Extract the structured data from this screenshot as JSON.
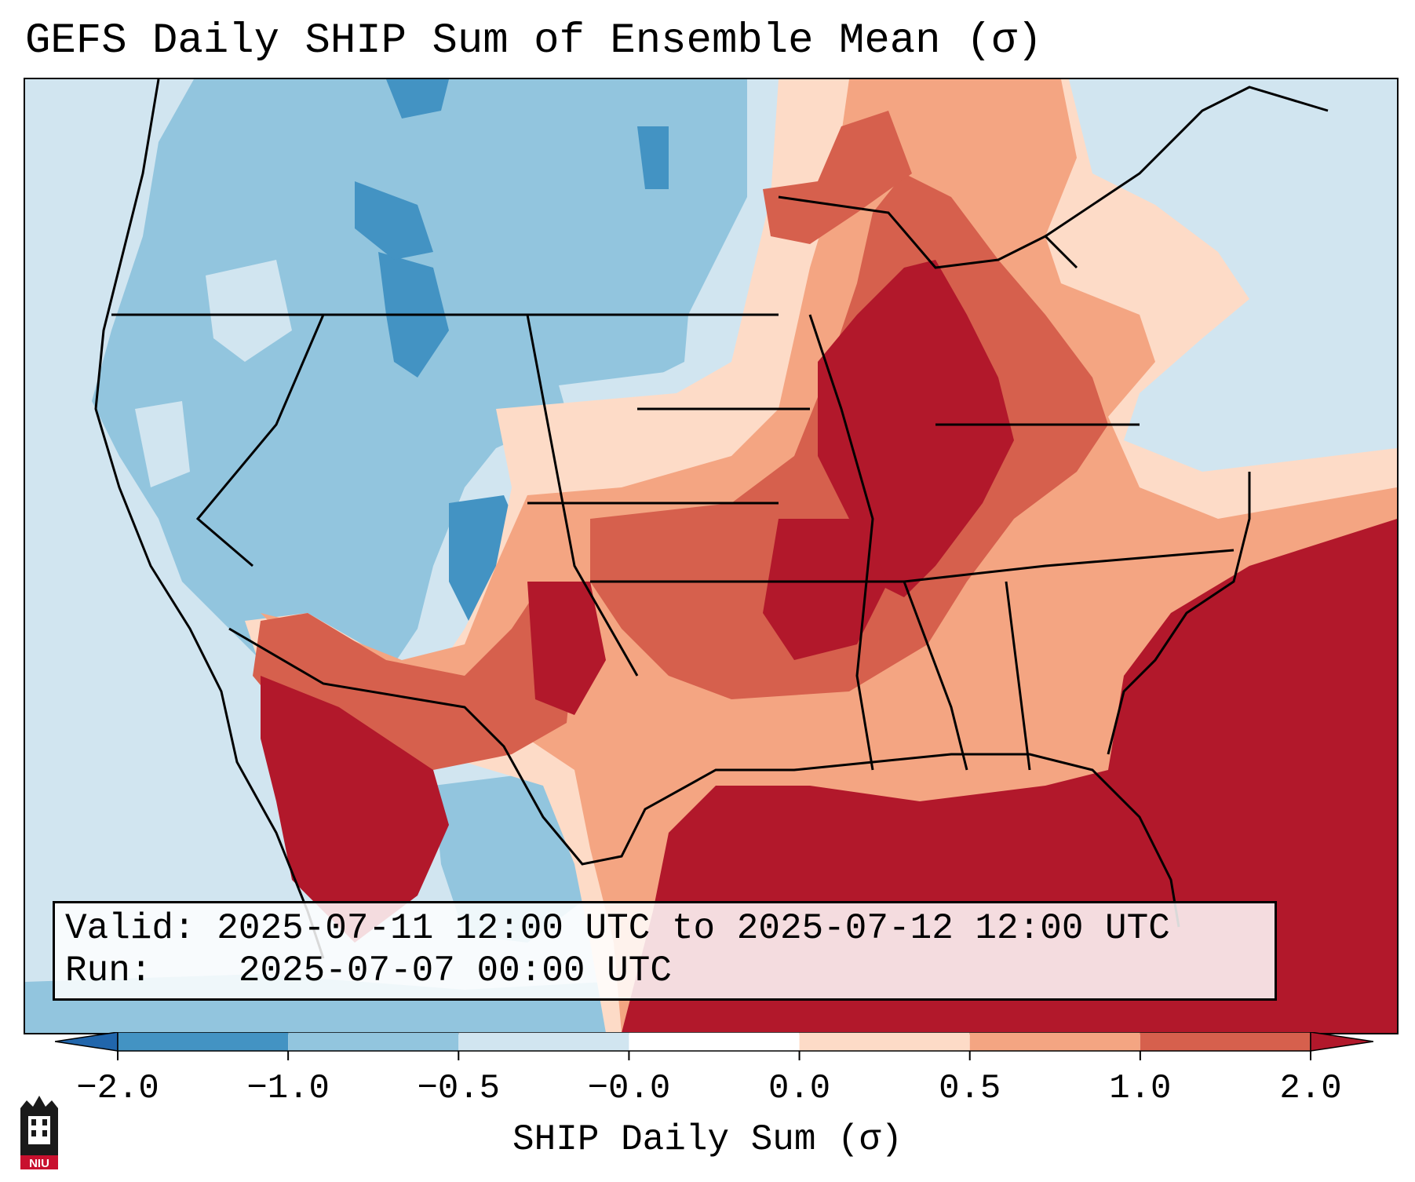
{
  "title": "GEFS Daily SHIP Sum of Ensemble Mean (σ)",
  "info": {
    "valid_label": "Valid:",
    "valid_value": "2025-07-11 12:00 UTC to 2025-07-12 12:00 UTC",
    "run_label": "Run:",
    "run_value": "2025-07-07 00:00 UTC"
  },
  "colorbar": {
    "label": "SHIP Daily Sum (σ)",
    "ticks": [
      "−2.0",
      "−1.0",
      "−0.5",
      "−0.0",
      "0.0",
      "0.5",
      "1.0",
      "2.0"
    ],
    "bin_colors": [
      "#4393c3",
      "#92c5de",
      "#d1e5f0",
      "#ffffff",
      "#fddbc7",
      "#f4a582",
      "#d6604d"
    ],
    "under_color": "#2166ac",
    "over_color": "#b2182b"
  },
  "map": {
    "region": "Contiguous United States",
    "palette": {
      "strong_negative": "#4393c3",
      "negative": "#92c5de",
      "weak_negative": "#d1e5f0",
      "weak_positive": "#fddbc7",
      "positive": "#f4a582",
      "strong_positive": "#d6604d",
      "extreme_positive": "#b2182b",
      "border": "#000000"
    }
  },
  "logo": {
    "text": "NIU",
    "icon": "niu-castle-icon"
  }
}
